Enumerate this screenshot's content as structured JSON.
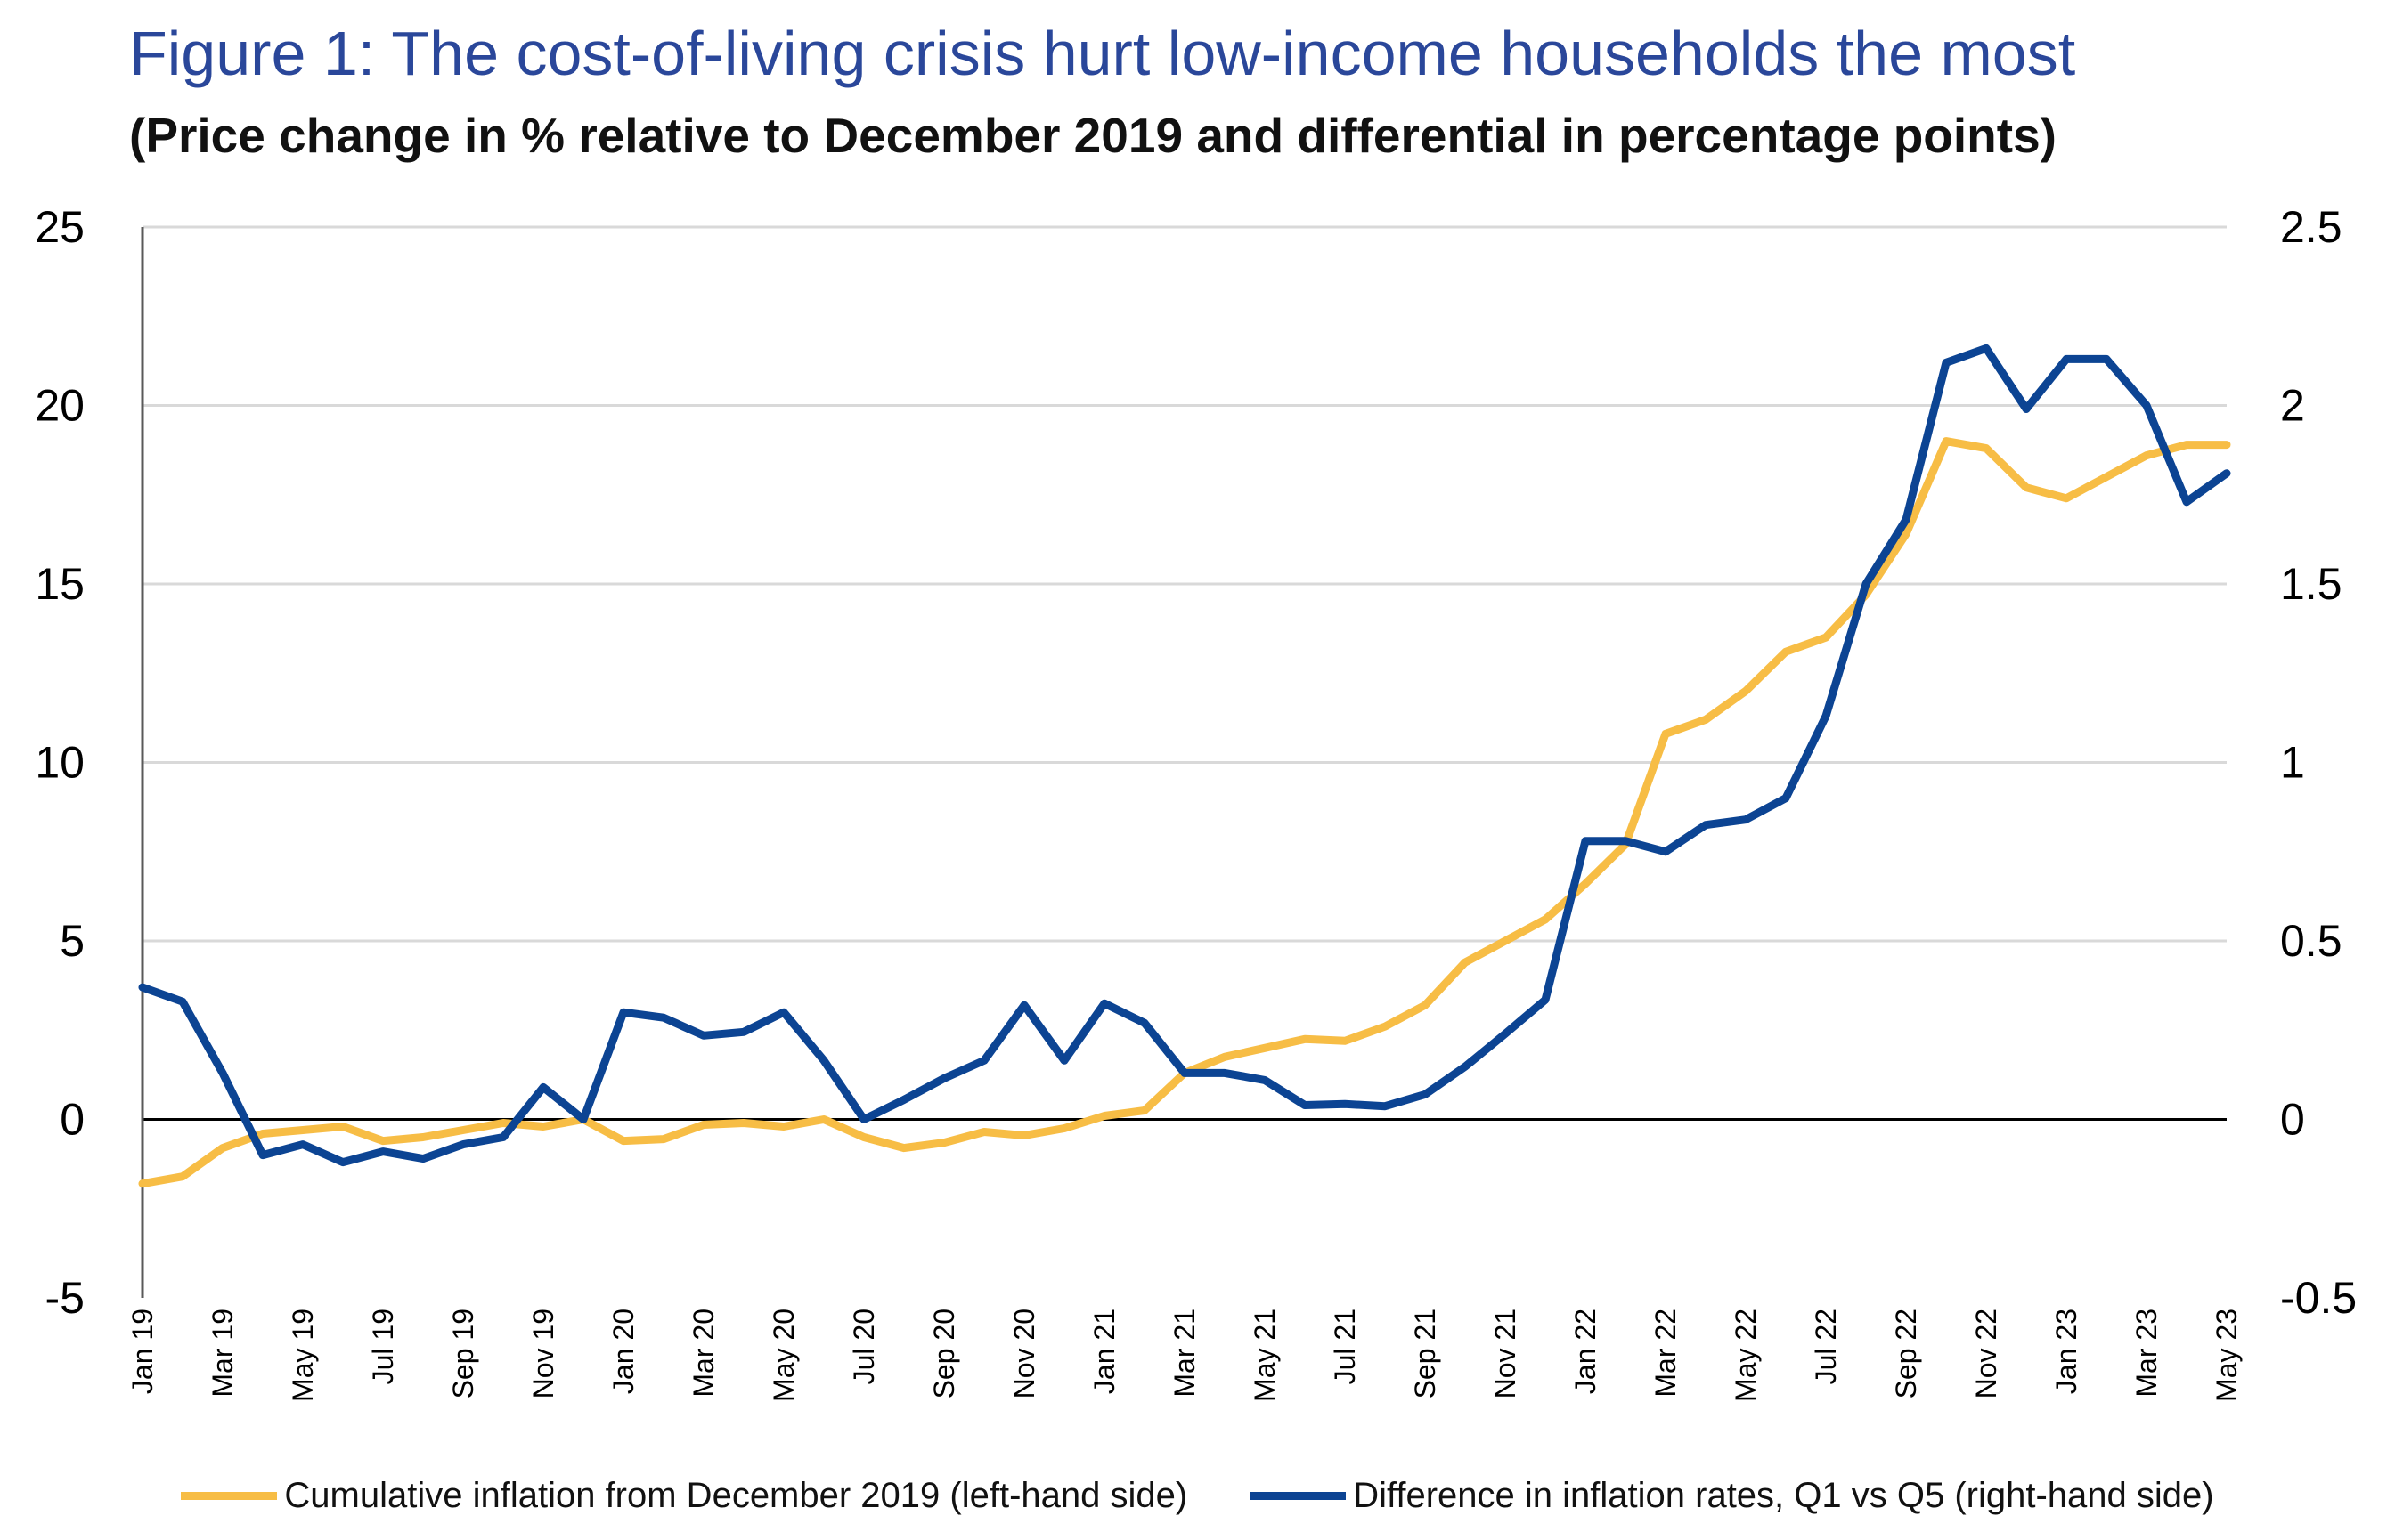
{
  "colors": {
    "series1": "#f7bd45",
    "series2": "#0c4493",
    "title": "#2a479a",
    "grid": "#d9d9d9"
  },
  "chart_data": {
    "type": "line",
    "title": "Figure 1: The cost-of-living crisis hurt low-income households the most",
    "subtitle": "(Price change in % relative to December 2019 and differential in percentage points)",
    "x": [
      "Jan 19",
      "Feb 19",
      "Mar 19",
      "Apr 19",
      "May 19",
      "Jun 19",
      "Jul 19",
      "Aug 19",
      "Sep 19",
      "Oct 19",
      "Nov 19",
      "Dec 19",
      "Jan 20",
      "Feb 20",
      "Mar 20",
      "Apr 20",
      "May 20",
      "Jun 20",
      "Jul 20",
      "Aug 20",
      "Sep 20",
      "Oct 20",
      "Nov 20",
      "Dec 20",
      "Jan 21",
      "Feb 21",
      "Mar 21",
      "Apr 21",
      "May 21",
      "Jun 21",
      "Jul 21",
      "Aug 21",
      "Sep 21",
      "Oct 21",
      "Nov 21",
      "Dec 21",
      "Jan 22",
      "Feb 22",
      "Mar 22",
      "Apr 22",
      "May 22",
      "Jun 22",
      "Jul 22",
      "Aug 22",
      "Sep 22",
      "Oct 22",
      "Nov 22",
      "Dec 22",
      "Jan 23",
      "Feb 23",
      "Mar 23",
      "Apr 23",
      "May 23"
    ],
    "x_tick_labels": [
      "Jan 19",
      "Mar 19",
      "May 19",
      "Jul 19",
      "Sep 19",
      "Nov 19",
      "Jan 20",
      "Mar 20",
      "May 20",
      "Jul 20",
      "Sep 20",
      "Nov 20",
      "Jan 21",
      "Mar 21",
      "May 21",
      "Jul 21",
      "Sep 21",
      "Nov 21",
      "Jan 22",
      "Mar 22",
      "May 22",
      "Jul 22",
      "Sep 22",
      "Nov 22",
      "Jan 23",
      "Mar 23",
      "May 23"
    ],
    "y_left": {
      "ylim": [
        -5,
        25
      ],
      "ticks": [
        "25",
        "20",
        "15",
        "10",
        "5",
        "0",
        "-5"
      ]
    },
    "y_right": {
      "ylim": [
        -0.5,
        2.5
      ],
      "ticks": [
        "2.5",
        "2",
        "1.5",
        "1",
        "0.5",
        "0",
        "-0.5"
      ]
    },
    "grid": true,
    "legend_position": "bottom",
    "series": [
      {
        "name": "Cumulative inflation from December 2019 (left-hand side)",
        "axis": "left",
        "values": [
          -1.8,
          -1.6,
          -0.8,
          -0.4,
          -0.3,
          -0.2,
          -0.6,
          -0.5,
          -0.3,
          -0.1,
          -0.2,
          0.0,
          -0.6,
          -0.55,
          -0.15,
          -0.1,
          -0.2,
          0.0,
          -0.5,
          -0.8,
          -0.65,
          -0.35,
          -0.45,
          -0.25,
          0.1,
          0.25,
          1.3,
          1.75,
          2.0,
          2.25,
          2.2,
          2.6,
          3.2,
          4.4,
          5.0,
          5.6,
          6.6,
          7.7,
          10.8,
          11.2,
          12.0,
          13.1,
          13.5,
          14.7,
          16.4,
          19.0,
          18.8,
          17.7,
          17.4,
          18.0,
          18.6,
          18.9,
          18.9
        ]
      },
      {
        "name": "Difference in inflation rates, Q1 vs Q5 (right-hand side)",
        "axis": "right",
        "values": [
          0.37,
          0.33,
          0.13,
          -0.1,
          -0.07,
          -0.12,
          -0.09,
          -0.11,
          -0.07,
          -0.05,
          0.09,
          0.0,
          0.3,
          0.285,
          0.235,
          0.245,
          0.3,
          0.165,
          0.0,
          0.055,
          0.115,
          0.165,
          0.32,
          0.165,
          0.325,
          0.27,
          0.13,
          0.13,
          0.11,
          0.04,
          0.043,
          0.037,
          0.07,
          0.148,
          0.24,
          0.335,
          0.78,
          0.78,
          0.75,
          0.825,
          0.84,
          0.9,
          1.13,
          1.5,
          1.68,
          2.12,
          2.16,
          1.99,
          2.13,
          2.13,
          2.0,
          1.73,
          1.81
        ]
      }
    ]
  }
}
